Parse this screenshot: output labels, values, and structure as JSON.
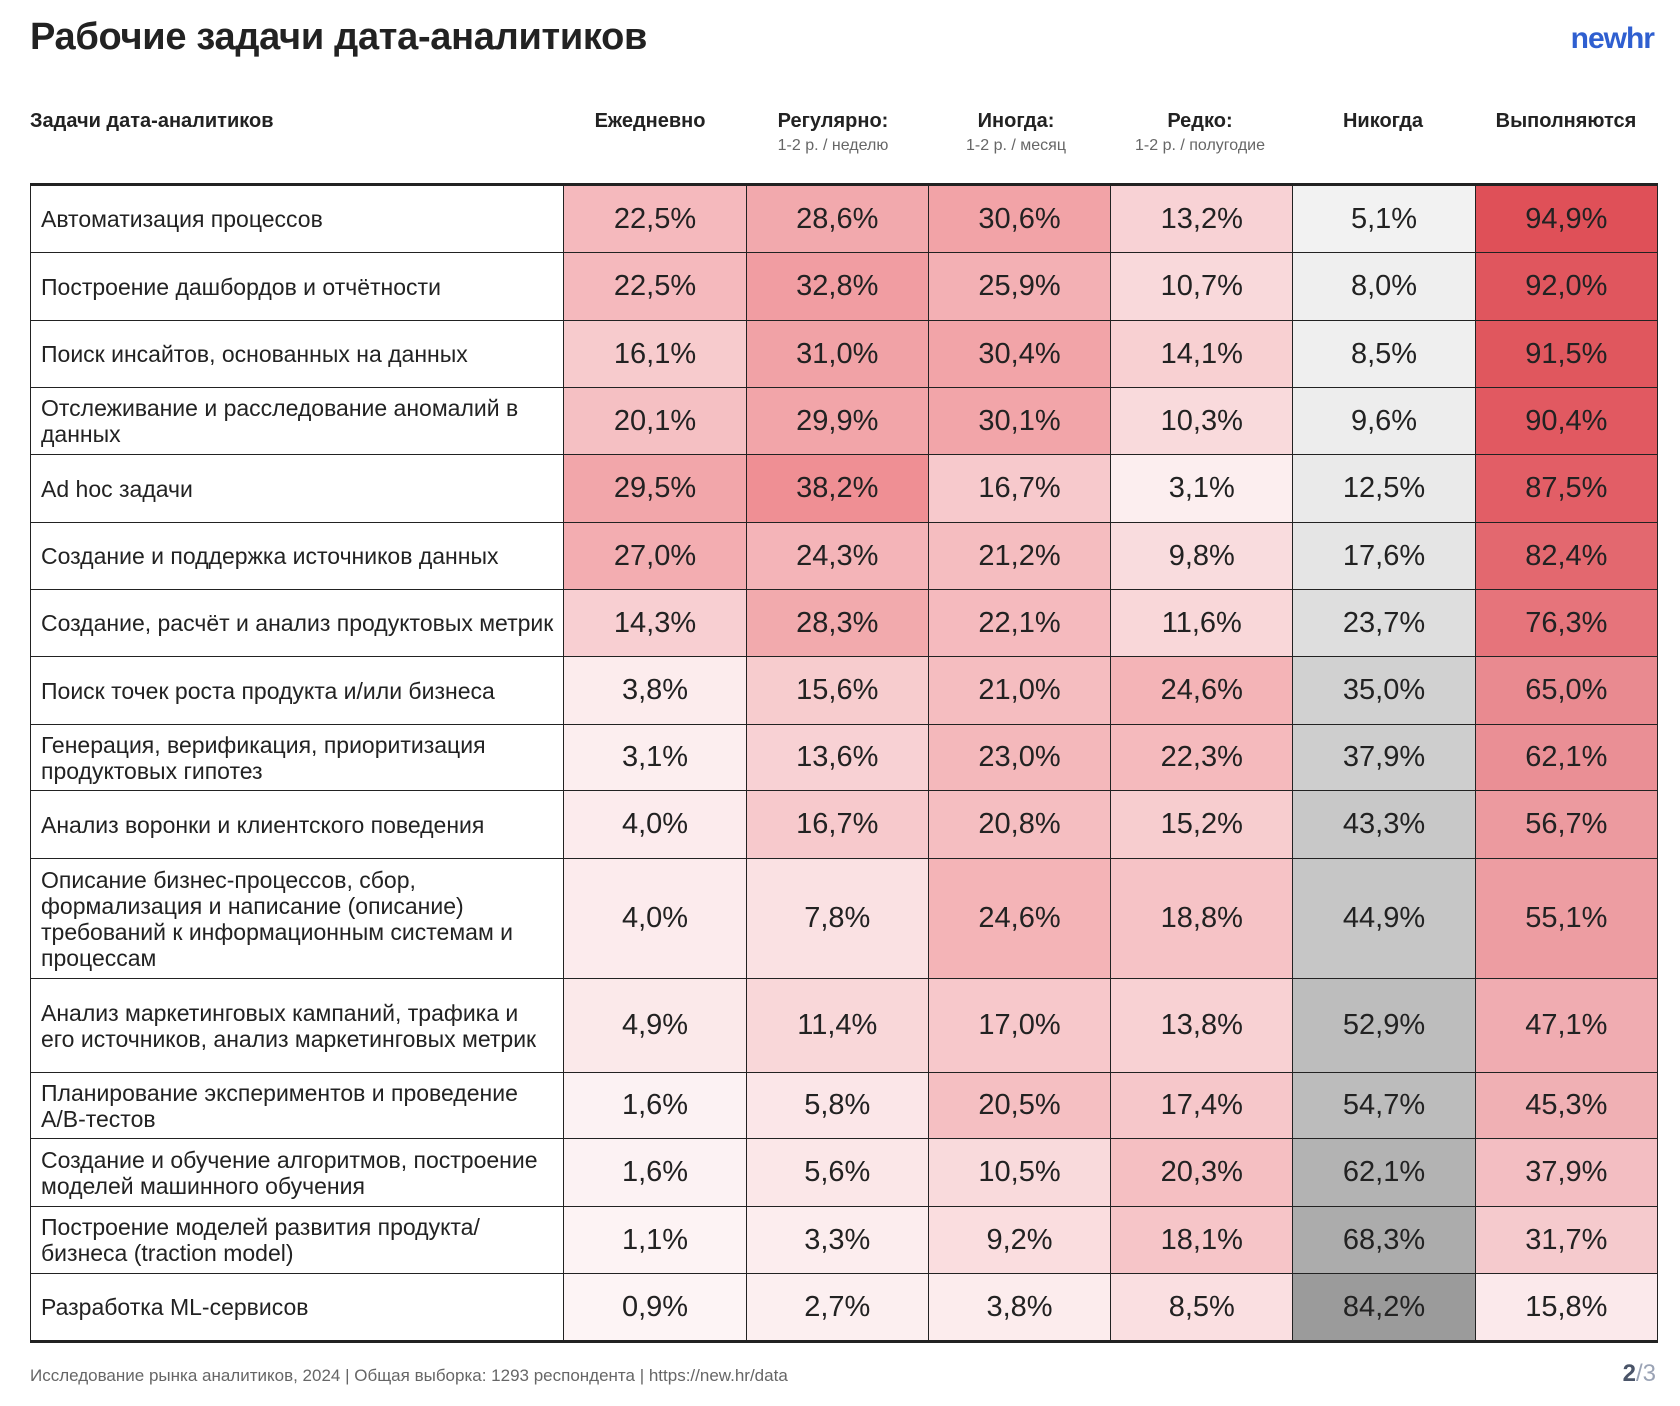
{
  "title": "Рабочие задачи дата-аналитиков",
  "logo": "newhr",
  "headers": {
    "task": "Задачи дата-аналитиков",
    "columns": [
      {
        "label": "Ежедневно",
        "sub": ""
      },
      {
        "label": "Регулярно:",
        "sub": "1-2 р. / неделю"
      },
      {
        "label": "Иногда:",
        "sub": "1-2 р. / месяц"
      },
      {
        "label": "Редко:",
        "sub": "1-2 р. / полугодие"
      },
      {
        "label": "Никогда",
        "sub": ""
      },
      {
        "label": "Выполняются",
        "sub": ""
      }
    ]
  },
  "colors": {
    "pink_low": "#fdf6f7",
    "pink_high": "#ee8a8f",
    "gray_low": "#f8f8f8",
    "gray_high": "#9a9a9a",
    "red_low": "#fcf0f2",
    "red_high": "#df5058"
  },
  "rows": [
    {
      "label": "Автоматизация процессов",
      "values": [
        "22,5%",
        "28,6%",
        "30,6%",
        "13,2%",
        "5,1%",
        "94,9%"
      ]
    },
    {
      "label": "Построение дашбордов и отчётности",
      "values": [
        "22,5%",
        "32,8%",
        "25,9%",
        "10,7%",
        "8,0%",
        "92,0%"
      ]
    },
    {
      "label": "Поиск инсайтов, основанных на данных",
      "values": [
        "16,1%",
        "31,0%",
        "30,4%",
        "14,1%",
        "8,5%",
        "91,5%"
      ]
    },
    {
      "label": "Отслеживание и расследование аномалий в данных",
      "values": [
        "20,1%",
        "29,9%",
        "30,1%",
        "10,3%",
        "9,6%",
        "90,4%"
      ]
    },
    {
      "label": "Ad hoc задачи",
      "values": [
        "29,5%",
        "38,2%",
        "16,7%",
        "3,1%",
        "12,5%",
        "87,5%"
      ]
    },
    {
      "label": "Создание и поддержка источников данных",
      "values": [
        "27,0%",
        "24,3%",
        "21,2%",
        "9,8%",
        "17,6%",
        "82,4%"
      ]
    },
    {
      "label": "Создание, расчёт и анализ продуктовых метрик",
      "values": [
        "14,3%",
        "28,3%",
        "22,1%",
        "11,6%",
        "23,7%",
        "76,3%"
      ]
    },
    {
      "label": "Поиск точек роста продукта и/или бизнеса",
      "values": [
        "3,8%",
        "15,6%",
        "21,0%",
        "24,6%",
        "35,0%",
        "65,0%"
      ]
    },
    {
      "label": "Генерация, верификация, приоритизация продуктовых гипотез",
      "values": [
        "3,1%",
        "13,6%",
        "23,0%",
        "22,3%",
        "37,9%",
        "62,1%"
      ]
    },
    {
      "label": "Анализ воронки и клиентского поведения",
      "values": [
        "4,0%",
        "16,7%",
        "20,8%",
        "15,2%",
        "43,3%",
        "56,7%"
      ]
    },
    {
      "label": "Описание бизнес-процессов, сбор, формализация и написание (описание) требований к информационным системам и процессам",
      "values": [
        "4,0%",
        "7,8%",
        "24,6%",
        "18,8%",
        "44,9%",
        "55,1%"
      ]
    },
    {
      "label": "Анализ маркетинговых кампаний, трафика и его источников, анализ маркетинговых метрик",
      "values": [
        "4,9%",
        "11,4%",
        "17,0%",
        "13,8%",
        "52,9%",
        "47,1%"
      ]
    },
    {
      "label": "Планирование экспериментов и проведение A/B-тестов",
      "values": [
        "1,6%",
        "5,8%",
        "20,5%",
        "17,4%",
        "54,7%",
        "45,3%"
      ]
    },
    {
      "label": "Создание и обучение алгоритмов, построение моделей машинного обучения",
      "values": [
        "1,6%",
        "5,6%",
        "10,5%",
        "20,3%",
        "62,1%",
        "37,9%"
      ]
    },
    {
      "label": "Построение моделей развития продукта/бизнеса (traction model)",
      "values": [
        "1,1%",
        "3,3%",
        "9,2%",
        "18,1%",
        "68,3%",
        "31,7%"
      ]
    },
    {
      "label": "Разработка ML-сервисов",
      "values": [
        "0,9%",
        "2,7%",
        "3,8%",
        "8,5%",
        "84,2%",
        "15,8%"
      ]
    }
  ],
  "footer": "Исследование рынка аналитиков, 2024 | Общая выборка: 1293 респондента | https://new.hr/data",
  "page": {
    "current": "2",
    "total": "/3"
  }
}
